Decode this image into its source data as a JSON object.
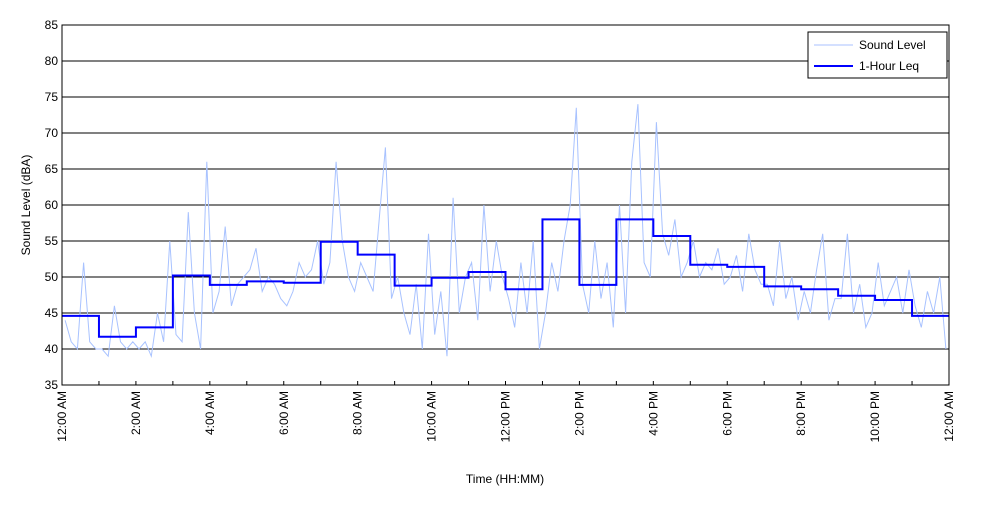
{
  "chart_data": {
    "type": "line",
    "title": "",
    "xlabel": "Time (HH:MM)",
    "ylabel": "Sound Level (dBA)",
    "ylim": [
      35,
      85
    ],
    "yticks": [
      35,
      40,
      45,
      50,
      55,
      60,
      65,
      70,
      75,
      80,
      85
    ],
    "xlim_hours": [
      0,
      24
    ],
    "xtick_labels": [
      "12:00 AM",
      "2:00 AM",
      "4:00 AM",
      "6:00 AM",
      "8:00 AM",
      "10:00 AM",
      "12:00 PM",
      "2:00 PM",
      "4:00 PM",
      "6:00 PM",
      "8:00 PM",
      "10:00 PM",
      "12:00 AM"
    ],
    "grid": "horizontal",
    "legend_position": "top-right",
    "series": [
      {
        "name": "Sound Level",
        "color": "#a8c2ff",
        "sample_interval_minutes": 10,
        "values": [
          44,
          41,
          40,
          52,
          41,
          40,
          40,
          39,
          46,
          41,
          40,
          41,
          40,
          41,
          39,
          45,
          41,
          55,
          42,
          41,
          59,
          45,
          40,
          66,
          45,
          48,
          57,
          46,
          49,
          50,
          51,
          54,
          48,
          50,
          49,
          47,
          46,
          48,
          52,
          50,
          51,
          55,
          49,
          52,
          66,
          55,
          50,
          48,
          52,
          50,
          48,
          58,
          68,
          47,
          50,
          45,
          42,
          49,
          40,
          56,
          42,
          48,
          39,
          61,
          45,
          50,
          52,
          44,
          60,
          48,
          55,
          50,
          47,
          43,
          52,
          45,
          55,
          40,
          45,
          52,
          48,
          55,
          60,
          73.5,
          49,
          45,
          55,
          47,
          52,
          43,
          60,
          45,
          66,
          74,
          52,
          50,
          71.5,
          56,
          53,
          58,
          50,
          52,
          55,
          50,
          52,
          51,
          54,
          49,
          50,
          53,
          48,
          56,
          51,
          49,
          49,
          46,
          55,
          47,
          50,
          44,
          48,
          45,
          51,
          56,
          44,
          47,
          47,
          56,
          45,
          49,
          43,
          45,
          52,
          46,
          48,
          50,
          45,
          51,
          46,
          43,
          48,
          45,
          50,
          40
        ]
      },
      {
        "name": "1-Hour Leq",
        "color": "#0000ff",
        "step": "hourly",
        "values": [
          44.6,
          41.7,
          43.0,
          50.2,
          48.9,
          49.4,
          49.2,
          54.9,
          53.1,
          48.8,
          49.9,
          50.7,
          48.3,
          58.0,
          48.9,
          58.0,
          55.7,
          51.7,
          51.4,
          48.7,
          48.3,
          47.4,
          46.8,
          44.6
        ]
      }
    ]
  }
}
